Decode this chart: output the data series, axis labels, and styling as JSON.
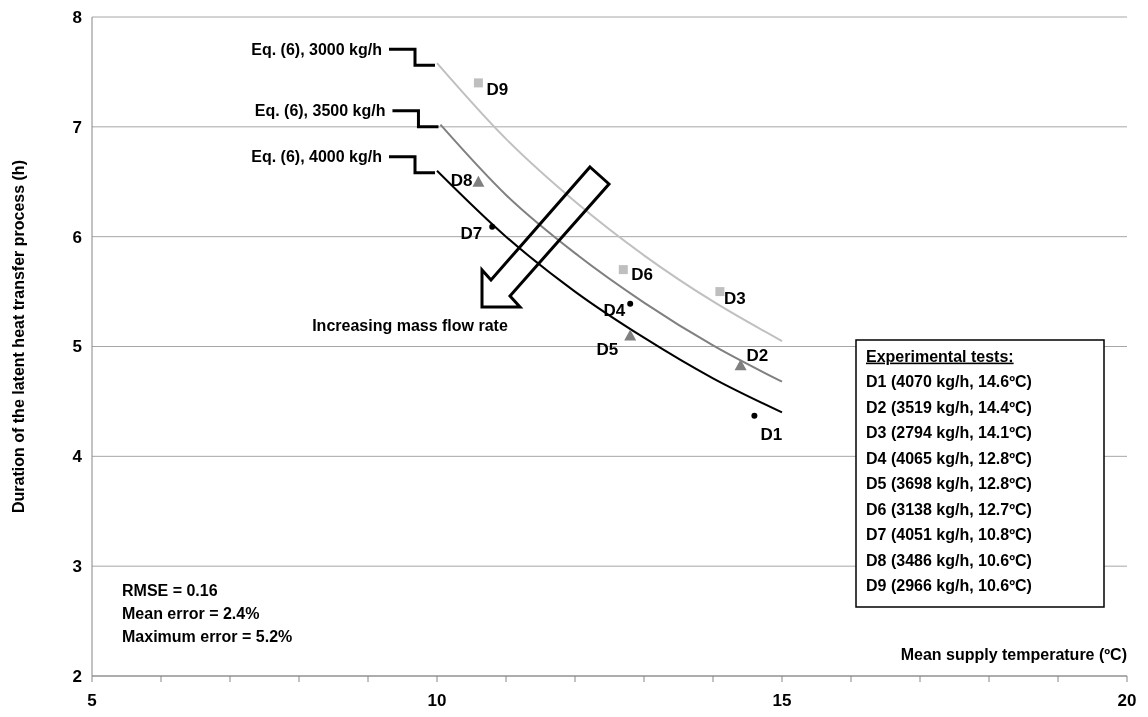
{
  "chart_data": {
    "type": "line",
    "xlabel": "Mean supply temperature (ºC)",
    "ylabel": "Duration of the latent heat transfer process (h)",
    "xlim": [
      5,
      20
    ],
    "ylim": [
      2,
      8
    ],
    "xticks": [
      5,
      {
        "value": 6,
        "label": null
      },
      {
        "value": 7,
        "label": null
      },
      {
        "value": 8,
        "label": null
      },
      {
        "value": 9,
        "label": null
      },
      10,
      {
        "value": 11,
        "label": null
      },
      {
        "value": 12,
        "label": null
      },
      {
        "value": 13,
        "label": null
      },
      {
        "value": 14,
        "label": null
      },
      15,
      {
        "value": 16,
        "label": null
      },
      {
        "value": 17,
        "label": null
      },
      {
        "value": 18,
        "label": null
      },
      {
        "value": 19,
        "label": null
      },
      20
    ],
    "yticks": [
      2,
      3,
      4,
      5,
      6,
      7,
      8
    ],
    "grid": "y",
    "line_style": "solid",
    "series": [
      {
        "type": "line",
        "color": "#c0c0c0",
        "x": [
          10,
          11,
          12,
          13,
          14,
          15
        ],
        "values": [
          7.58,
          6.89,
          6.32,
          5.83,
          5.41,
          5.05
        ]
      },
      {
        "type": "line",
        "color": "#808080",
        "x": [
          10.05,
          11,
          12,
          13,
          14,
          15
        ],
        "values": [
          7.02,
          6.38,
          5.85,
          5.4,
          5.01,
          4.68
        ]
      },
      {
        "type": "line",
        "color": "#000000",
        "x": [
          10,
          11,
          12,
          13,
          14,
          15
        ],
        "values": [
          6.6,
          6.0,
          5.5,
          5.08,
          4.71,
          4.4
        ]
      },
      {
        "type": "scatter",
        "marker": "square",
        "color": "#bfbfbf",
        "x": [
          14.1,
          12.7,
          10.6
        ],
        "values": [
          5.5,
          5.7,
          7.4
        ]
      },
      {
        "type": "scatter",
        "marker": "triangle",
        "color": "#808080",
        "x": [
          14.4,
          12.8,
          10.6
        ],
        "values": [
          4.83,
          5.1,
          6.5
        ]
      },
      {
        "type": "scatter",
        "marker": "circle",
        "color": "#000000",
        "x": [
          14.6,
          12.8,
          10.8
        ],
        "values": [
          4.37,
          5.39,
          6.09
        ]
      }
    ],
    "annotations": [
      {
        "text": "Eq. (6), 3000 kg/h",
        "x": 10,
        "y": 7.58
      },
      {
        "text": "Eq. (6), 3500 kg/h",
        "x": 10.05,
        "y": 7.02
      },
      {
        "text": "Eq. (6), 4000 kg/h",
        "x": 10,
        "y": 6.6
      },
      {
        "text": "D1",
        "x": 14.6,
        "y": 4.37
      },
      {
        "text": "D2",
        "x": 14.4,
        "y": 4.83
      },
      {
        "text": "D3",
        "x": 14.1,
        "y": 5.5
      },
      {
        "text": "D4",
        "x": 12.8,
        "y": 5.39
      },
      {
        "text": "D5",
        "x": 12.8,
        "y": 5.1
      },
      {
        "text": "D6",
        "x": 12.7,
        "y": 5.7
      },
      {
        "text": "D7",
        "x": 10.8,
        "y": 6.09
      },
      {
        "text": "D8",
        "x": 10.6,
        "y": 6.5
      },
      {
        "text": "D9",
        "x": 10.6,
        "y": 7.4
      },
      "Increasing mass flow rate",
      "RMSE = 0.16",
      "Mean error = 2.4%",
      "Maximum error = 5.2%",
      "Experimental tests:",
      "D1 (4070 kg/h, 14.6ºC)",
      "D2 (3519 kg/h, 14.4ºC)",
      "D3 (2794 kg/h, 14.1ºC)",
      "D4 (4065 kg/h, 12.8ºC)",
      "D5 (3698 kg/h, 12.8ºC)",
      "D6 (3138 kg/h, 12.7ºC)",
      "D7 (4051 kg/h, 10.8ºC)",
      "D8 (3486 kg/h, 10.6ºC)",
      "D9 (2966 kg/h, 10.6ºC)"
    ]
  }
}
